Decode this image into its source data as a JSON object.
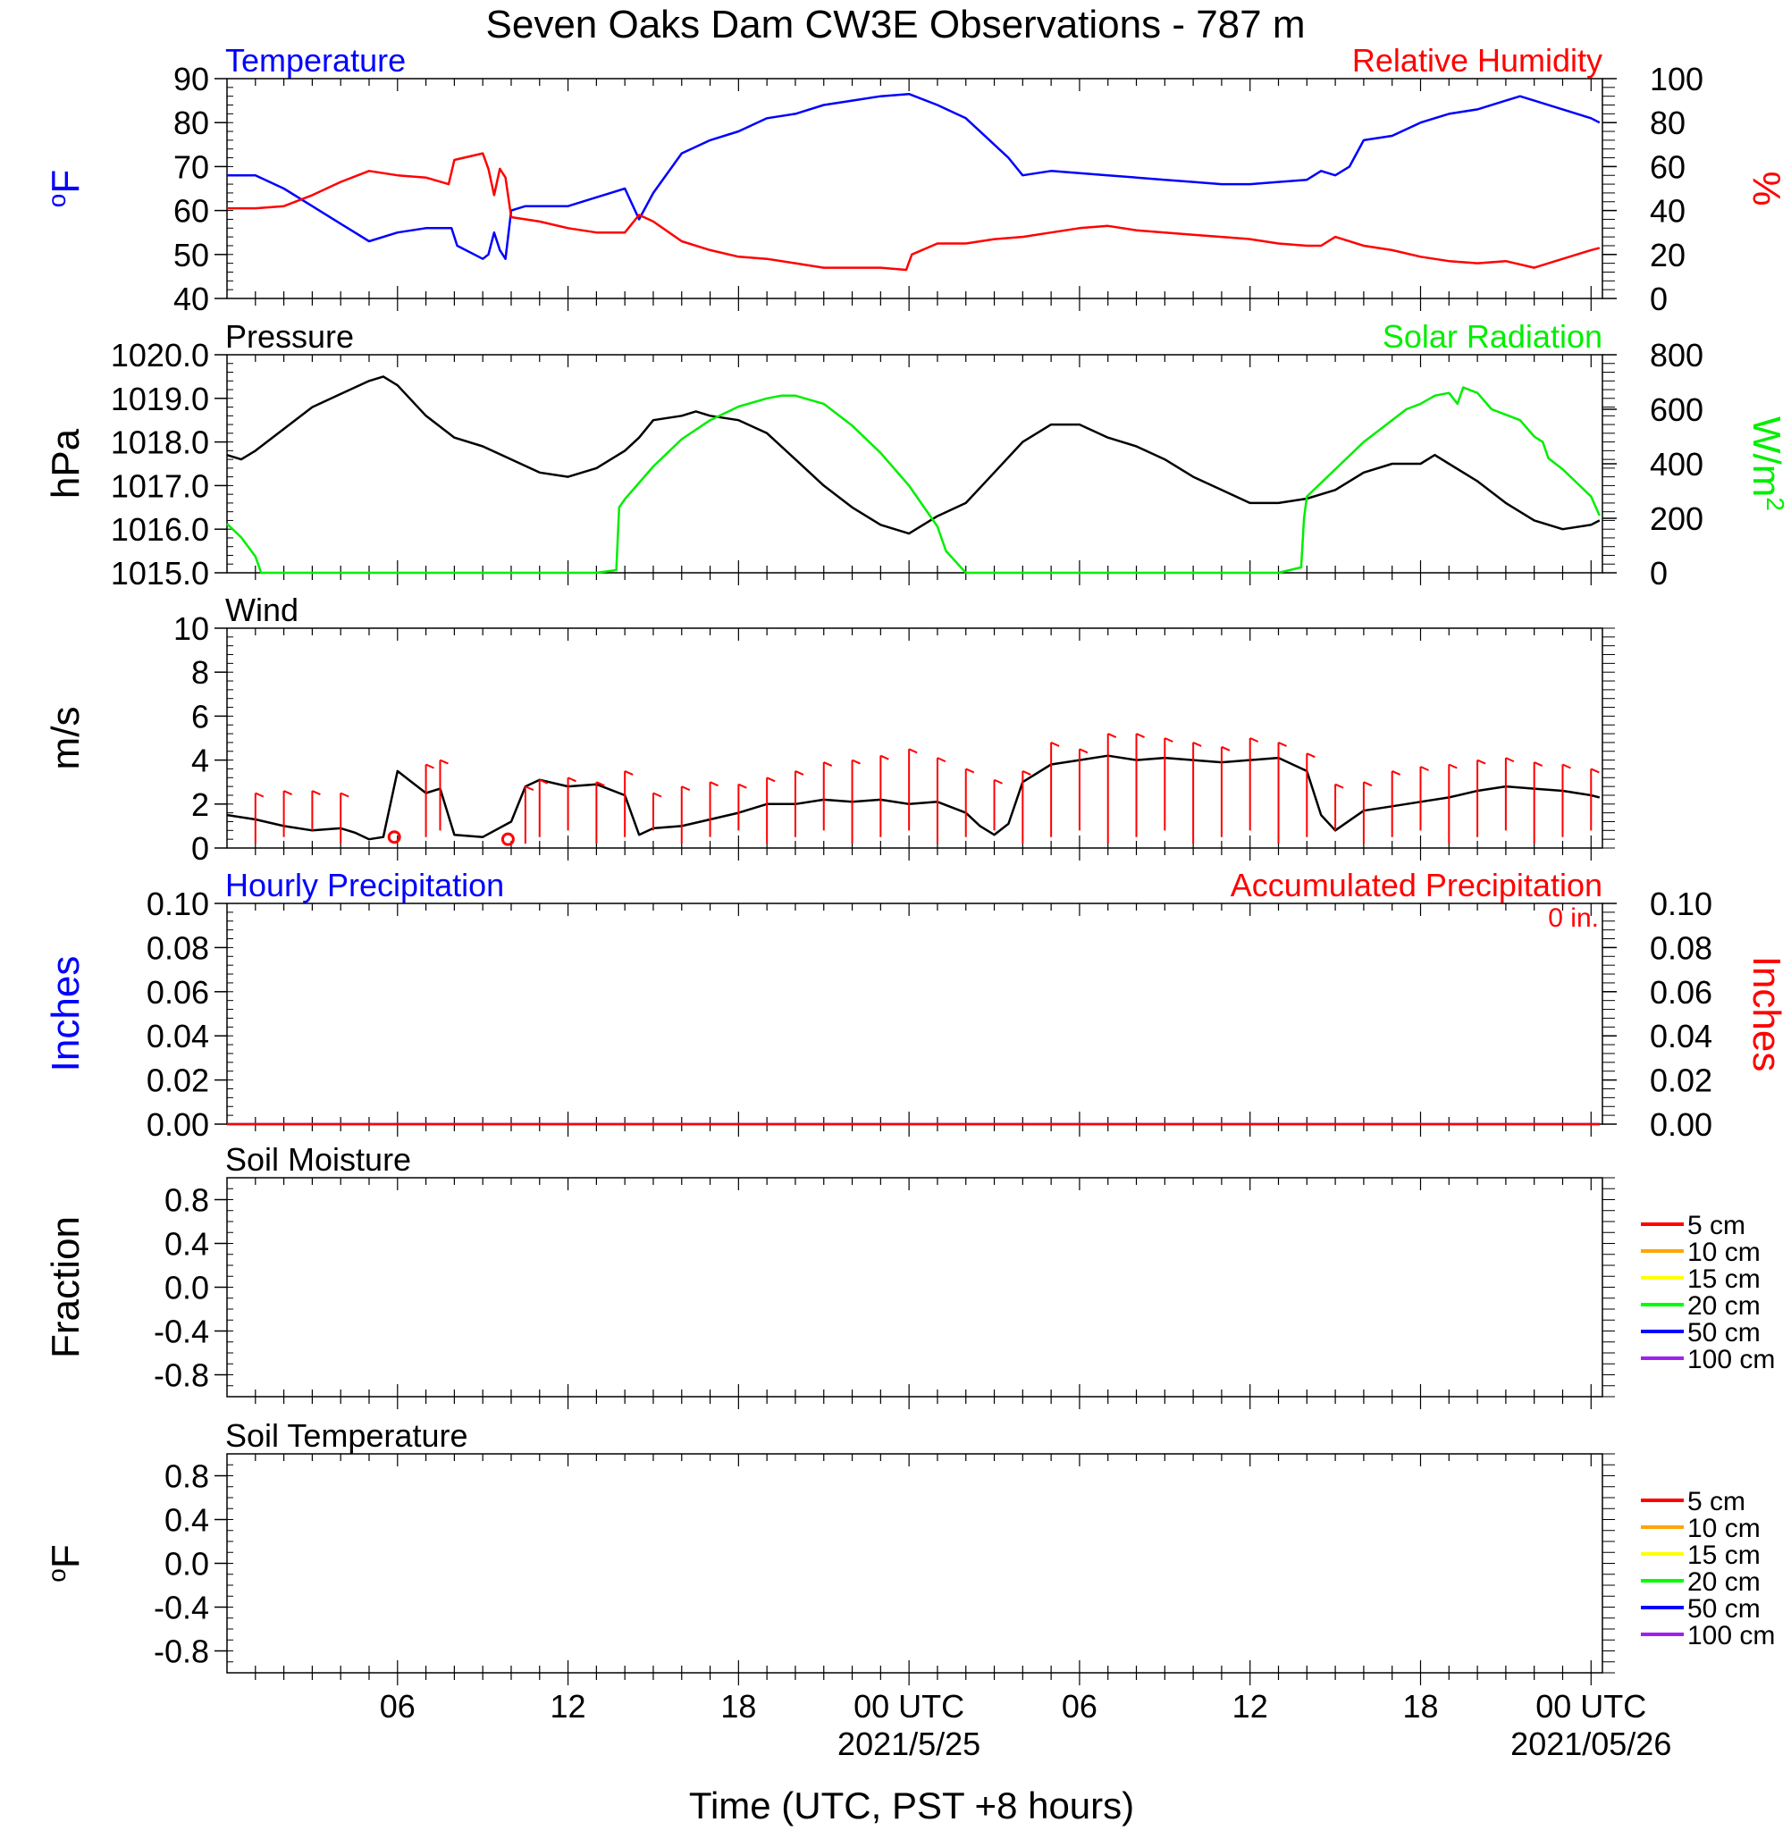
{
  "title": "Seven Oaks Dam CW3E Observations - 787 m",
  "xlabel": "Time (UTC, PST +8 hours)",
  "x_axis": {
    "range_hours": [
      0,
      48.4
    ],
    "ticks": [
      {
        "hour": 6,
        "label": "06",
        "sublabel": ""
      },
      {
        "hour": 12,
        "label": "12",
        "sublabel": ""
      },
      {
        "hour": 18,
        "label": "18",
        "sublabel": ""
      },
      {
        "hour": 24,
        "label": "00 UTC",
        "sublabel": "2021/5/25"
      },
      {
        "hour": 30,
        "label": "06",
        "sublabel": ""
      },
      {
        "hour": 36,
        "label": "12",
        "sublabel": ""
      },
      {
        "hour": 42,
        "label": "18",
        "sublabel": ""
      },
      {
        "hour": 48,
        "label": "00 UTC",
        "sublabel": "2021/05/26"
      }
    ]
  },
  "colors": {
    "temperature": "#0000ff",
    "humidity": "#ff0000",
    "pressure": "#000000",
    "solar": "#00ee00",
    "wind": "#000000",
    "wind_barb": "#ff0000",
    "hourly_precip": "#0000ff",
    "accum_precip": "#ff0000"
  },
  "chart_data": [
    {
      "type": "line",
      "panel": "temperature_humidity",
      "left_title": "Temperature",
      "right_title": "Relative Humidity",
      "ylabel_left": "oF",
      "ylabel_right": "%",
      "ylim_left": [
        40,
        90
      ],
      "yticks_left": [
        "40",
        "50",
        "60",
        "70",
        "80",
        "90"
      ],
      "ylim_right": [
        0,
        100
      ],
      "yticks_right": [
        "0",
        "20",
        "40",
        "60",
        "80",
        "100"
      ],
      "series": [
        {
          "name": "Temperature",
          "axis": "left",
          "x": [
            0,
            1,
            2,
            3,
            4,
            5,
            6,
            7,
            7.9,
            8.1,
            9,
            9.2,
            9.4,
            9.6,
            9.8,
            10,
            10.5,
            11,
            12,
            13,
            13.5,
            14,
            14.5,
            15,
            16,
            17,
            18,
            19,
            20,
            21,
            22,
            23,
            24,
            25,
            26,
            27,
            27.5,
            28,
            29,
            30,
            31,
            32,
            33,
            34,
            35,
            36,
            37,
            38,
            38.5,
            39,
            39.5,
            40,
            41,
            42,
            43,
            44,
            45,
            45.5,
            46,
            47,
            48,
            48.3
          ],
          "y": [
            68,
            68,
            65,
            61,
            57,
            53,
            55,
            56,
            56,
            52,
            49,
            50,
            55,
            51,
            49,
            60,
            61,
            61,
            61,
            63,
            64,
            65,
            58,
            64,
            73,
            76,
            78,
            81,
            82,
            84,
            85,
            86,
            86.5,
            84,
            81,
            75,
            72,
            68,
            69,
            68.5,
            68,
            67.5,
            67,
            66.5,
            66,
            66,
            66.5,
            67,
            69,
            68,
            70,
            76,
            77,
            80,
            82,
            83,
            85,
            86,
            85,
            83,
            81,
            80
          ]
        },
        {
          "name": "Relative Humidity",
          "axis": "right",
          "x": [
            0,
            1,
            2,
            3,
            4,
            5,
            6,
            7,
            7.8,
            8,
            9,
            9.2,
            9.4,
            9.6,
            9.8,
            10,
            11,
            12,
            13,
            14,
            14.5,
            15,
            16,
            17,
            18,
            19,
            20,
            21,
            22,
            23,
            23.9,
            24.1,
            25,
            26,
            27,
            28,
            29,
            30,
            31,
            32,
            33,
            34,
            35,
            36,
            37,
            38,
            38.5,
            39,
            40,
            41,
            42,
            43,
            44,
            45,
            46,
            47,
            48,
            48.3
          ],
          "y": [
            41,
            41,
            42,
            47,
            53,
            58,
            56,
            55,
            52,
            63,
            66,
            59,
            47,
            59,
            55,
            37,
            35,
            32,
            30,
            30,
            38,
            35,
            26,
            22,
            19,
            18,
            16,
            14,
            14,
            14,
            13,
            20,
            25,
            25,
            27,
            28,
            30,
            32,
            33,
            31,
            30,
            29,
            28,
            27,
            25,
            24,
            24,
            28,
            24,
            22,
            19,
            17,
            16,
            17,
            14,
            18,
            22,
            23
          ]
        }
      ]
    },
    {
      "type": "line",
      "panel": "pressure_solar",
      "left_title": "Pressure",
      "right_title": "Solar Radiation",
      "ylabel_left": "hPa",
      "ylabel_right": "W/m2",
      "ylim_left": [
        1015.0,
        1020.0
      ],
      "yticks_left": [
        "1015.0",
        "1016.0",
        "1017.0",
        "1018.0",
        "1019.0",
        "1020.0"
      ],
      "ylim_right": [
        0,
        800
      ],
      "yticks_right": [
        "0",
        "200",
        "400",
        "600",
        "800"
      ],
      "series": [
        {
          "name": "Pressure",
          "axis": "left",
          "x": [
            0,
            0.5,
            1,
            2,
            3,
            4,
            5,
            5.5,
            6,
            7,
            8,
            9,
            10,
            11,
            12,
            13,
            14,
            14.5,
            15,
            16,
            16.5,
            17,
            18,
            19,
            20,
            21,
            22,
            23,
            24,
            25,
            26,
            27,
            28,
            29,
            30,
            31,
            32,
            33,
            34,
            35,
            36,
            37,
            38,
            39,
            40,
            41,
            42,
            42.5,
            43,
            44,
            45,
            46,
            47,
            48,
            48.3
          ],
          "y": [
            1017.7,
            1017.6,
            1017.8,
            1018.3,
            1018.8,
            1019.1,
            1019.4,
            1019.5,
            1019.3,
            1018.6,
            1018.1,
            1017.9,
            1017.6,
            1017.3,
            1017.2,
            1017.4,
            1017.8,
            1018.1,
            1018.5,
            1018.6,
            1018.7,
            1018.6,
            1018.5,
            1018.2,
            1017.6,
            1017.0,
            1016.5,
            1016.1,
            1015.9,
            1016.3,
            1016.6,
            1017.3,
            1018.0,
            1018.4,
            1018.4,
            1018.1,
            1017.9,
            1017.6,
            1017.2,
            1016.9,
            1016.6,
            1016.6,
            1016.7,
            1016.9,
            1017.3,
            1017.5,
            1017.5,
            1017.7,
            1017.5,
            1017.1,
            1016.6,
            1016.2,
            1016.0,
            1016.1,
            1016.2
          ]
        },
        {
          "name": "Solar Radiation",
          "axis": "right",
          "x": [
            0,
            0.5,
            1,
            1.2,
            2,
            4,
            6,
            8,
            10,
            12,
            13,
            13.7,
            13.8,
            14,
            15,
            16,
            17,
            18,
            19,
            19.5,
            20,
            21,
            22,
            23,
            24,
            25,
            25.3,
            26,
            28,
            30,
            32,
            34,
            36,
            37,
            37.8,
            37.9,
            38,
            39,
            40,
            41,
            41.5,
            42,
            42.5,
            43,
            43.3,
            43.5,
            44,
            44.5,
            45,
            45.5,
            46,
            46.3,
            46.5,
            47,
            47.5,
            48,
            48.3
          ],
          "y": [
            180,
            130,
            60,
            0,
            0,
            0,
            0,
            0,
            0,
            0,
            0,
            10,
            240,
            270,
            390,
            490,
            560,
            610,
            640,
            650,
            650,
            620,
            540,
            440,
            320,
            170,
            80,
            0,
            0,
            0,
            0,
            0,
            0,
            0,
            20,
            200,
            280,
            380,
            480,
            560,
            600,
            620,
            650,
            660,
            620,
            680,
            660,
            600,
            580,
            560,
            500,
            480,
            420,
            380,
            330,
            280,
            210
          ]
        }
      ]
    },
    {
      "type": "line",
      "panel": "wind",
      "left_title": "Wind",
      "ylabel_left": "m/s",
      "ylim_left": [
        0,
        10
      ],
      "yticks_left": [
        "0",
        "2",
        "4",
        "6",
        "8",
        "10"
      ],
      "series": [
        {
          "name": "Wind",
          "axis": "left",
          "x": [
            0,
            1,
            2,
            3,
            4,
            4.5,
            5,
            5.5,
            6,
            6.5,
            7,
            7.5,
            8,
            9,
            10,
            10.5,
            11,
            12,
            13,
            14,
            14.5,
            15,
            16,
            17,
            18,
            19,
            20,
            21,
            22,
            23,
            24,
            25,
            26,
            26.5,
            27,
            27.5,
            28,
            29,
            30,
            31,
            32,
            33,
            34,
            35,
            36,
            37,
            38,
            38.5,
            39,
            40,
            41,
            42,
            43,
            44,
            45,
            46,
            47,
            48,
            48.3
          ],
          "y": [
            1.5,
            1.3,
            1.0,
            0.8,
            0.9,
            0.7,
            0.4,
            0.5,
            3.5,
            3.0,
            2.5,
            2.7,
            0.6,
            0.5,
            1.2,
            2.8,
            3.1,
            2.8,
            2.9,
            2.4,
            0.6,
            0.9,
            1.0,
            1.3,
            1.6,
            2.0,
            2.0,
            2.2,
            2.1,
            2.2,
            2.0,
            2.1,
            1.6,
            1.0,
            0.6,
            1.1,
            3.0,
            3.8,
            4.0,
            4.2,
            4.0,
            4.1,
            4.0,
            3.9,
            4.0,
            4.1,
            3.5,
            1.5,
            0.8,
            1.7,
            1.9,
            2.1,
            2.3,
            2.6,
            2.8,
            2.7,
            2.6,
            2.4,
            2.3
          ]
        },
        {
          "name": "Wind Barbs",
          "axis": "left",
          "style": "barbs",
          "x": [
            1,
            2,
            3,
            4,
            7,
            7.5,
            10.5,
            11,
            12,
            13,
            14,
            15,
            16,
            17,
            18,
            19,
            20,
            21,
            22,
            23,
            24,
            25,
            26,
            27,
            28,
            29,
            30,
            31,
            32,
            33,
            34,
            35,
            36,
            37,
            38,
            39,
            40,
            41,
            42,
            43,
            44,
            45,
            46,
            47,
            48
          ],
          "y": [
            2.5,
            2.6,
            2.6,
            2.5,
            3.8,
            4.0,
            2.8,
            3.1,
            3.2,
            3.0,
            3.5,
            2.5,
            2.8,
            3.0,
            2.9,
            3.2,
            3.5,
            3.9,
            4.0,
            4.2,
            4.5,
            4.1,
            3.6,
            3.1,
            3.5,
            4.8,
            4.5,
            5.2,
            5.2,
            5.0,
            4.8,
            4.6,
            5.0,
            4.8,
            4.3,
            2.9,
            3.0,
            3.5,
            3.7,
            3.8,
            4.0,
            4.1,
            3.9,
            3.8,
            3.6
          ]
        },
        {
          "name": "Calm",
          "axis": "left",
          "style": "circles",
          "x": [
            4.0,
            8.0
          ],
          "y": [
            0.5,
            0.4
          ]
        }
      ]
    },
    {
      "type": "line",
      "panel": "precipitation",
      "left_title": "Hourly Precipitation",
      "right_title": "Accumulated Precipitation",
      "annotation": "0 in.",
      "ylabel_left": "Inches",
      "ylabel_right": "Inches",
      "ylim_left": [
        0,
        0.1
      ],
      "yticks_left": [
        "0.00",
        "0.02",
        "0.04",
        "0.06",
        "0.08",
        "0.10"
      ],
      "ylim_right": [
        0,
        0.1
      ],
      "yticks_right": [
        "0.00",
        "0.02",
        "0.04",
        "0.06",
        "0.08",
        "0.10"
      ],
      "series": [
        {
          "name": "Hourly Precipitation",
          "axis": "left",
          "x": [
            0,
            48.3
          ],
          "y": [
            0,
            0
          ]
        },
        {
          "name": "Accumulated Precipitation",
          "axis": "right",
          "x": [
            0,
            48.3
          ],
          "y": [
            0,
            0
          ]
        }
      ]
    },
    {
      "type": "line",
      "panel": "soil_moisture",
      "left_title": "Soil Moisture",
      "ylabel_left": "Fraction",
      "ylim_left": [
        -1.0,
        1.0
      ],
      "yticks_left": [
        "-0.8",
        "-0.4",
        "0.0",
        "0.4",
        "0.8"
      ],
      "legend": [
        {
          "label": "5 cm",
          "color": "#ff0000"
        },
        {
          "label": "10 cm",
          "color": "#ffa500"
        },
        {
          "label": "15 cm",
          "color": "#ffff00"
        },
        {
          "label": "20 cm",
          "color": "#00ff00"
        },
        {
          "label": "50 cm",
          "color": "#0000ff"
        },
        {
          "label": "100 cm",
          "color": "#a020f0"
        }
      ],
      "series": []
    },
    {
      "type": "line",
      "panel": "soil_temperature",
      "left_title": "Soil Temperature",
      "ylabel_left": "oF",
      "ylim_left": [
        -1.0,
        1.0
      ],
      "yticks_left": [
        "-0.8",
        "-0.4",
        "0.0",
        "0.4",
        "0.8"
      ],
      "legend": [
        {
          "label": "5 cm",
          "color": "#ff0000"
        },
        {
          "label": "10 cm",
          "color": "#ffa500"
        },
        {
          "label": "15 cm",
          "color": "#ffff00"
        },
        {
          "label": "20 cm",
          "color": "#00ff00"
        },
        {
          "label": "50 cm",
          "color": "#0000ff"
        },
        {
          "label": "100 cm",
          "color": "#a020f0"
        }
      ],
      "series": []
    }
  ]
}
